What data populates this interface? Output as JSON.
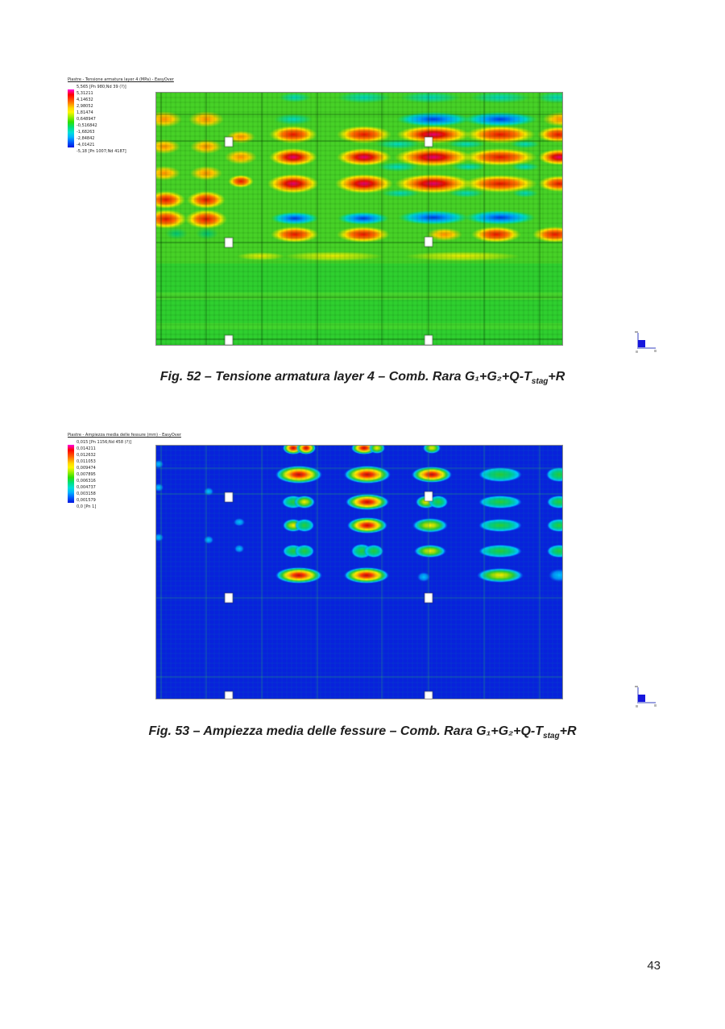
{
  "page": {
    "number": "43"
  },
  "palette": {
    "hot1": [
      [
        0,
        "#e6007d"
      ],
      [
        0.3,
        "#e81000"
      ],
      [
        0.55,
        "#ff8c00"
      ],
      [
        0.75,
        "#ffe800"
      ],
      [
        1,
        "rgba(200,230,0,0)"
      ]
    ],
    "red1": [
      [
        0,
        "#e81000"
      ],
      [
        0.45,
        "#ff7300"
      ],
      [
        0.7,
        "#ffe800"
      ],
      [
        1,
        "rgba(200,230,0,0)"
      ]
    ],
    "orange1": [
      [
        0,
        "#ff8c00"
      ],
      [
        0.5,
        "#ffd000"
      ],
      [
        1,
        "rgba(220,220,0,0)"
      ]
    ],
    "yellow1": [
      [
        0,
        "rgba(255,238,0,0.95)"
      ],
      [
        0.6,
        "rgba(230,240,0,0.55)"
      ],
      [
        1,
        "rgba(230,240,0,0)"
      ]
    ],
    "cyan1": [
      [
        0,
        "#00d9c8"
      ],
      [
        0.6,
        "rgba(0,215,170,0.55)"
      ],
      [
        1,
        "rgba(0,220,120,0)"
      ]
    ],
    "teal1": [
      [
        0,
        "#00c87d"
      ],
      [
        1,
        "rgba(0,200,120,0)"
      ]
    ],
    "blue1": [
      [
        0,
        "#0033e6"
      ],
      [
        0.4,
        "#00a0ff"
      ],
      [
        0.7,
        "#00d9c8"
      ],
      [
        1,
        "rgba(0,220,120,0)"
      ]
    ],
    "hot2": [
      [
        0,
        "#c80000"
      ],
      [
        0.25,
        "#ff3c00"
      ],
      [
        0.42,
        "#ffb400"
      ],
      [
        0.55,
        "#ffee00"
      ],
      [
        0.72,
        "#2ecc2e"
      ],
      [
        0.88,
        "#00c8ff"
      ],
      [
        1,
        "rgba(0,90,255,0)"
      ]
    ],
    "warm2": [
      [
        0,
        "#ffee00"
      ],
      [
        0.3,
        "#aadd00"
      ],
      [
        0.55,
        "#2ecc2e"
      ],
      [
        0.82,
        "#00c8ff"
      ],
      [
        1,
        "rgba(0,90,255,0)"
      ]
    ],
    "green2": [
      [
        0,
        "#2ecc2e"
      ],
      [
        0.5,
        "#00cc88"
      ],
      [
        0.82,
        "#00c8ff"
      ],
      [
        1,
        "rgba(0,90,255,0)"
      ]
    ],
    "cyan2": [
      [
        0,
        "#00c8ff"
      ],
      [
        0.6,
        "rgba(0,180,255,0.7)"
      ],
      [
        1,
        "rgba(0,130,255,0)"
      ]
    ]
  },
  "figures": [
    {
      "id": "fig52",
      "legend": {
        "title": "Piastre - Tensione armatura layer 4 (MPa) - EasyOver",
        "entries": [
          "5,565 [Pn 980;Nd 39 (?)]",
          "5,31211",
          "4,14632",
          "2,98052",
          "1,81474",
          "0,648947",
          "-0,516842",
          "-1,68263",
          "-2,84842",
          "-4,01421",
          "-5,18 [Pn 1007;Nd 4187]"
        ]
      },
      "caption": {
        "prefix": "Fig. 52 – Tensione armatura layer 4 – Comb. Rara G₁+G₂+Q-T",
        "sub": "stag",
        "suffix": "+R"
      },
      "plot": {
        "background": "#2fd02f",
        "tints": [
          [
            0,
            0,
            504,
            212,
            "rgba(200,225,0,0.16)"
          ],
          [
            0,
            248,
            504,
            9,
            "rgba(170,240,40,0.2)"
          ],
          [
            0,
            286,
            504,
            8,
            "rgba(170,240,40,0.16)"
          ]
        ],
        "blobs": [
          [
            258,
            6,
            34,
            7,
            "cyan1"
          ],
          [
            340,
            6,
            38,
            7,
            "cyan1"
          ],
          [
            427,
            6,
            38,
            7,
            "cyan1"
          ],
          [
            497,
            6,
            25,
            7,
            "cyan1"
          ],
          [
            172,
            6,
            20,
            6,
            "cyan1"
          ],
          [
            344,
            33,
            46,
            9,
            "blue1"
          ],
          [
            427,
            33,
            46,
            9,
            "blue1"
          ],
          [
            170,
            33,
            24,
            7,
            "cyan1"
          ],
          [
            10,
            33,
            22,
            10,
            "orange1"
          ],
          [
            62,
            33,
            22,
            10,
            "orange1"
          ],
          [
            502,
            33,
            22,
            9,
            "orange1"
          ],
          [
            170,
            52,
            30,
            11,
            "red1"
          ],
          [
            258,
            52,
            34,
            11,
            "red1"
          ],
          [
            344,
            52,
            46,
            11,
            "hot1"
          ],
          [
            427,
            52,
            44,
            11,
            "red1"
          ],
          [
            499,
            52,
            26,
            10,
            "red1"
          ],
          [
            105,
            55,
            18,
            8,
            "orange1"
          ],
          [
            300,
            64,
            28,
            6,
            "cyan1"
          ],
          [
            385,
            64,
            24,
            5,
            "cyan1"
          ],
          [
            458,
            64,
            18,
            5,
            "cyan1"
          ],
          [
            10,
            67,
            20,
            9,
            "orange1"
          ],
          [
            62,
            67,
            20,
            9,
            "orange1"
          ],
          [
            170,
            80,
            30,
            11,
            "hot1"
          ],
          [
            258,
            80,
            34,
            11,
            "hot1"
          ],
          [
            344,
            80,
            48,
            12,
            "hot1"
          ],
          [
            427,
            80,
            46,
            11,
            "red1"
          ],
          [
            500,
            80,
            26,
            10,
            "hot1"
          ],
          [
            105,
            80,
            20,
            9,
            "orange1"
          ],
          [
            300,
            92,
            26,
            6,
            "cyan1"
          ],
          [
            388,
            92,
            22,
            5,
            "cyan1"
          ],
          [
            458,
            92,
            18,
            5,
            "cyan1"
          ],
          [
            10,
            100,
            20,
            9,
            "orange1"
          ],
          [
            62,
            100,
            20,
            9,
            "orange1"
          ],
          [
            170,
            113,
            32,
            12,
            "hot1"
          ],
          [
            258,
            113,
            36,
            12,
            "hot1"
          ],
          [
            344,
            113,
            48,
            12,
            "hot1"
          ],
          [
            427,
            113,
            46,
            11,
            "red1"
          ],
          [
            500,
            113,
            26,
            10,
            "red1"
          ],
          [
            105,
            110,
            16,
            8,
            "red1"
          ],
          [
            303,
            125,
            24,
            5,
            "cyan1"
          ],
          [
            385,
            125,
            22,
            5,
            "cyan1"
          ],
          [
            458,
            125,
            16,
            5,
            "cyan1"
          ],
          [
            12,
            133,
            24,
            11,
            "red1"
          ],
          [
            62,
            133,
            24,
            11,
            "red1"
          ],
          [
            12,
            157,
            26,
            12,
            "red1"
          ],
          [
            62,
            157,
            26,
            12,
            "red1"
          ],
          [
            172,
            156,
            30,
            8,
            "blue1"
          ],
          [
            257,
            156,
            32,
            8,
            "blue1"
          ],
          [
            344,
            155,
            44,
            9,
            "blue1"
          ],
          [
            427,
            155,
            44,
            9,
            "blue1"
          ],
          [
            172,
            176,
            30,
            10,
            "red1"
          ],
          [
            257,
            176,
            33,
            10,
            "red1"
          ],
          [
            358,
            176,
            22,
            8,
            "orange1"
          ],
          [
            422,
            176,
            31,
            10,
            "red1"
          ],
          [
            495,
            176,
            28,
            10,
            "red1"
          ],
          [
            25,
            175,
            14,
            7,
            "teal1"
          ],
          [
            63,
            175,
            14,
            7,
            "teal1"
          ],
          [
            220,
            203,
            62,
            6,
            "yellow1"
          ],
          [
            380,
            203,
            72,
            6,
            "yellow1"
          ],
          [
            130,
            203,
            30,
            5,
            "yellow1"
          ]
        ],
        "squares": [
          [
            90,
            61
          ],
          [
            338,
            61
          ],
          [
            90,
            186
          ],
          [
            338,
            185
          ],
          [
            90,
            307
          ],
          [
            338,
            307
          ]
        ],
        "grid": {
          "fineStep": 6,
          "fineColor": "rgba(0,70,0,0.33)",
          "coarseColor": "rgba(0,45,0,0.5)",
          "vlines": [
            6,
            62,
            131,
            200,
            280,
            338,
            407,
            476
          ],
          "hlines": [
            27,
            60,
            186,
            254,
            306
          ]
        }
      }
    },
    {
      "id": "fig53",
      "legend": {
        "title": "Piastre - Ampiezza media delle fessure (mm) - EasyOver",
        "entries": [
          "0,015 [Pn 1156;Nd 458 (?)]",
          "0,014211",
          "0,012632",
          "0,011053",
          "0,009474",
          "0,007895",
          "0,006316",
          "0,004737",
          "0,003158",
          "0,001579",
          "0,0 [Pn 1]"
        ]
      },
      "caption": {
        "prefix": "Fig. 53 – Ampiezza media delle fessure – Comb. Rara G₁+G₂+Q-T",
        "sub": "stag",
        "suffix": "+R"
      },
      "plot": {
        "background": "#0822dc",
        "tints": [],
        "blobs": [
          [
            170,
            3,
            13,
            8,
            "hot2"
          ],
          [
            186,
            3,
            12,
            8,
            "hot2"
          ],
          [
            258,
            3,
            16,
            8,
            "hot2"
          ],
          [
            274,
            3,
            10,
            7,
            "warm2"
          ],
          [
            342,
            3,
            11,
            7,
            "warm2"
          ],
          [
            177,
            36,
            29,
            11,
            "hot2"
          ],
          [
            262,
            36,
            29,
            11,
            "hot2"
          ],
          [
            342,
            36,
            25,
            10,
            "hot2"
          ],
          [
            427,
            36,
            27,
            9,
            "green2"
          ],
          [
            500,
            36,
            16,
            9,
            "green2"
          ],
          [
            170,
            70,
            14,
            8,
            "green2"
          ],
          [
            184,
            70,
            13,
            8,
            "warm2"
          ],
          [
            262,
            70,
            27,
            10,
            "hot2"
          ],
          [
            335,
            70,
            13,
            8,
            "warm2"
          ],
          [
            350,
            70,
            12,
            8,
            "green2"
          ],
          [
            427,
            70,
            27,
            8,
            "green2"
          ],
          [
            500,
            70,
            15,
            8,
            "green2"
          ],
          [
            170,
            99,
            13,
            8,
            "warm2"
          ],
          [
            184,
            99,
            12,
            8,
            "green2"
          ],
          [
            262,
            99,
            25,
            10,
            "hot2"
          ],
          [
            340,
            99,
            22,
            9,
            "warm2"
          ],
          [
            427,
            99,
            27,
            8,
            "green2"
          ],
          [
            500,
            99,
            15,
            8,
            "green2"
          ],
          [
            170,
            131,
            13,
            8,
            "green2"
          ],
          [
            184,
            131,
            12,
            8,
            "green2"
          ],
          [
            255,
            131,
            13,
            9,
            "green2"
          ],
          [
            270,
            131,
            12,
            8,
            "green2"
          ],
          [
            340,
            131,
            20,
            8,
            "warm2"
          ],
          [
            427,
            131,
            27,
            8,
            "green2"
          ],
          [
            500,
            131,
            15,
            8,
            "green2"
          ],
          [
            177,
            161,
            29,
            10,
            "hot2"
          ],
          [
            261,
            161,
            28,
            10,
            "hot2"
          ],
          [
            332,
            163,
            8,
            6,
            "cyan2"
          ],
          [
            427,
            161,
            29,
            9,
            "warm2"
          ],
          [
            500,
            161,
            13,
            8,
            "cyan2"
          ],
          [
            3,
            23,
            6,
            5,
            "cyan2"
          ],
          [
            3,
            52,
            6,
            5,
            "cyan2"
          ],
          [
            3,
            114,
            6,
            5,
            "cyan2"
          ],
          [
            65,
            57,
            6,
            5,
            "cyan2"
          ],
          [
            65,
            117,
            6,
            5,
            "cyan2"
          ],
          [
            103,
            95,
            7,
            5,
            "cyan2"
          ],
          [
            103,
            128,
            6,
            5,
            "cyan2"
          ]
        ],
        "squares": [
          [
            90,
            64
          ],
          [
            338,
            63
          ],
          [
            90,
            189
          ],
          [
            338,
            189
          ],
          [
            90,
            311
          ],
          [
            338,
            311
          ]
        ],
        "grid": {
          "fineStep": 6,
          "fineColor": "rgba(0,150,150,0.28)",
          "coarseColor": "rgba(40,170,110,0.5)",
          "vlines": [
            6,
            62,
            131,
            200,
            280,
            338,
            407,
            476
          ],
          "hlines": [
            28,
            60,
            189,
            287
          ]
        }
      }
    }
  ]
}
